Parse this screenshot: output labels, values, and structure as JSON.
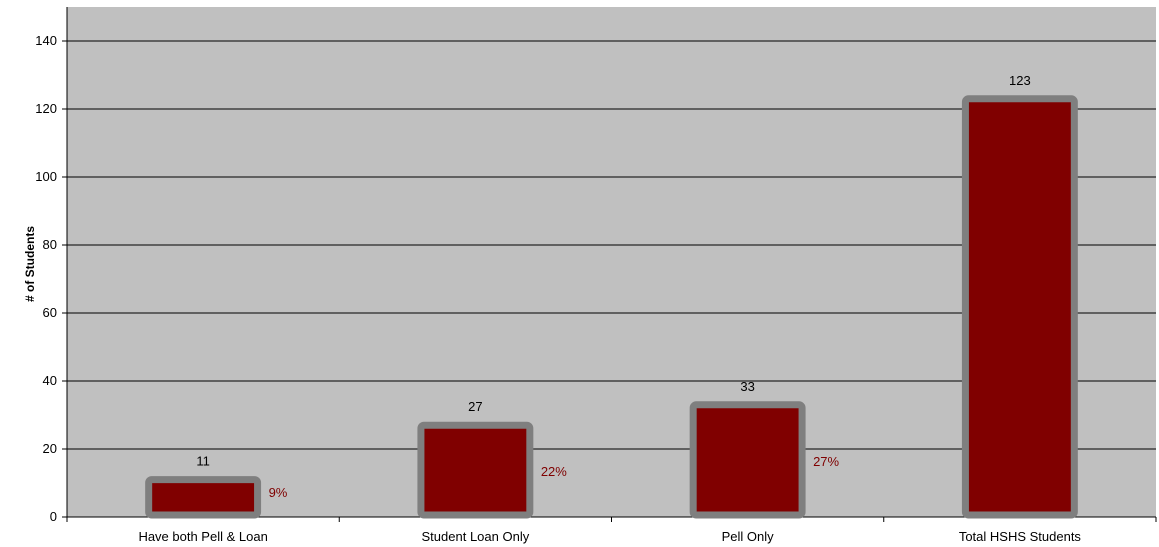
{
  "chart_data": {
    "type": "bar",
    "categories": [
      "Have both Pell & Loan",
      "Student Loan Only",
      "Pell Only",
      "Total HSHS Students"
    ],
    "values": [
      11,
      27,
      33,
      123
    ],
    "value_labels": [
      "11",
      "27",
      "33",
      "123"
    ],
    "percent_labels": [
      "9%",
      "22%",
      "27%",
      ""
    ],
    "title": "",
    "xlabel": "",
    "ylabel": "# of Students",
    "ylim": [
      0,
      150
    ],
    "yticks": [
      0,
      20,
      40,
      60,
      80,
      100,
      120,
      140
    ],
    "ytick_labels": [
      "0",
      "20",
      "40",
      "60",
      "80",
      "100",
      "120",
      "140"
    ],
    "grid": true,
    "legend": "none",
    "colors": {
      "plot_background": "#c0c0c0",
      "bar_fill": "#800000",
      "bar_border": "#7f7f7f",
      "percent_text": "#7f0000"
    }
  }
}
